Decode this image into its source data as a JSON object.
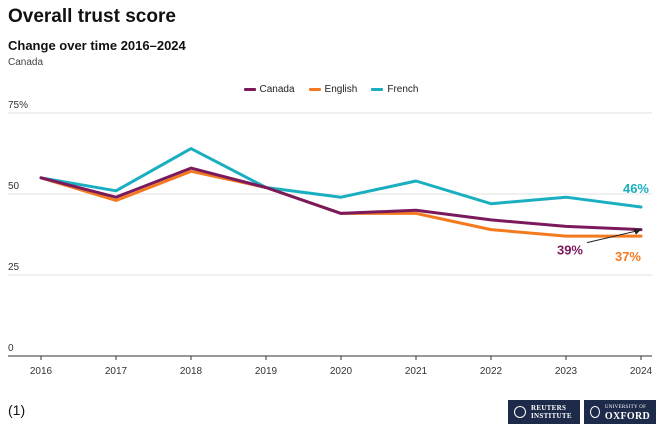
{
  "header": {
    "title": "Overall trust score",
    "subtitle": "Change over time 2016–2024",
    "note": "Canada"
  },
  "footnote": "(1)",
  "logos": {
    "reuters": [
      "REUTERS",
      "INSTITUTE"
    ],
    "oxford_small": "UNIVERSITY OF",
    "oxford_big": "OXFORD"
  },
  "colors": {
    "Canada": "#7a1a5c",
    "English": "#f47a20",
    "French": "#1aafc0",
    "grid": "#d9d9d9",
    "axis": "#333333",
    "logo_bg": "#1e2a4a"
  },
  "chart_data": {
    "type": "line",
    "x": [
      "2016",
      "2017",
      "2018",
      "2019",
      "2020",
      "2021",
      "2022",
      "2023",
      "2024"
    ],
    "ylim": [
      0,
      75
    ],
    "yticks": [
      0,
      25,
      50,
      75
    ],
    "ytick_labels": [
      "0",
      "25",
      "50",
      "75%"
    ],
    "grid": true,
    "legend": "top-center",
    "series": [
      {
        "name": "Canada",
        "values": [
          55,
          49,
          58,
          52,
          44,
          45,
          42,
          40,
          39
        ]
      },
      {
        "name": "English",
        "values": [
          55,
          48,
          57,
          52,
          44,
          44,
          39,
          37,
          37
        ]
      },
      {
        "name": "French",
        "values": [
          55,
          51,
          64,
          52,
          49,
          54,
          47,
          49,
          46
        ]
      }
    ],
    "end_labels": [
      {
        "series": "French",
        "text": "46%"
      },
      {
        "series": "Canada",
        "text": "39%"
      },
      {
        "series": "English",
        "text": "37%"
      }
    ]
  }
}
